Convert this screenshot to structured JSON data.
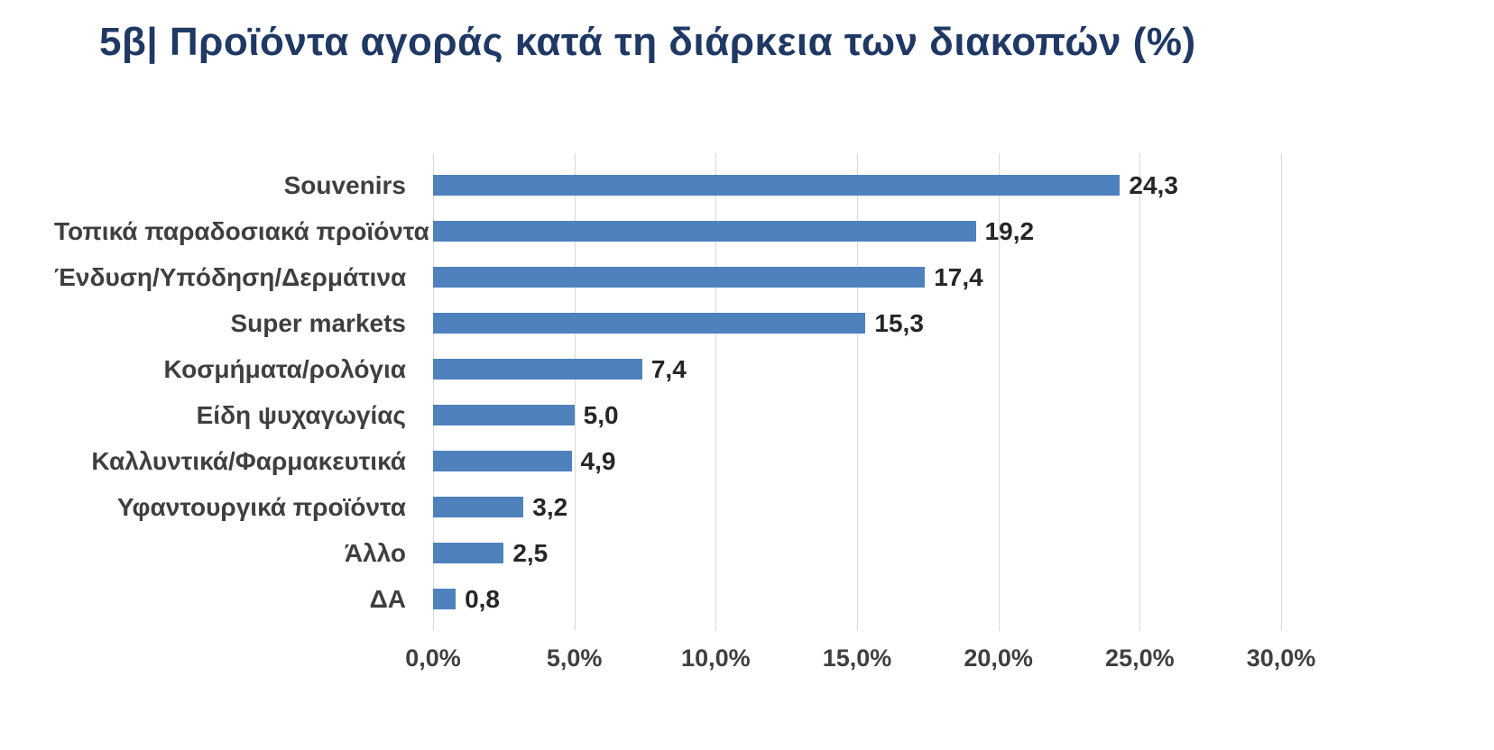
{
  "chart_data": {
    "type": "bar",
    "orientation": "horizontal",
    "title": "5β| Προϊόντα αγοράς κατά τη διάρκεια των διακοπών (%)",
    "categories": [
      "Souvenirs",
      "Τοπικά παραδοσιακά προϊόντα",
      "Ένδυση/Υπόδηση/Δερμάτινα",
      "Super markets",
      "Κοσμήματα/ρολόγια",
      "Είδη ψυχαγωγίας",
      "Καλλυντικά/Φαρμακευτικά",
      "Υφαντουργικά προϊόντα",
      "Άλλο",
      "ΔΑ"
    ],
    "values": [
      24.3,
      19.2,
      17.4,
      15.3,
      7.4,
      5.0,
      4.9,
      3.2,
      2.5,
      0.8
    ],
    "value_labels": [
      "24,3",
      "19,2",
      "17,4",
      "15,3",
      "7,4",
      "5,0",
      "4,9",
      "3,2",
      "2,5",
      "0,8"
    ],
    "xlabel": "",
    "ylabel": "",
    "xlim": [
      0,
      30
    ],
    "x_ticks": [
      0,
      5,
      10,
      15,
      20,
      25,
      30
    ],
    "x_tick_labels": [
      "0,0%",
      "5,0%",
      "10,0%",
      "15,0%",
      "20,0%",
      "25,0%",
      "30,0%"
    ],
    "grid": true,
    "legend_position": "none",
    "bar_color": "#4f81bd",
    "title_color": "#1f3864",
    "label_color": "#3f3f3f",
    "value_color": "#262626",
    "gridline_color": "#d9d9d9"
  }
}
